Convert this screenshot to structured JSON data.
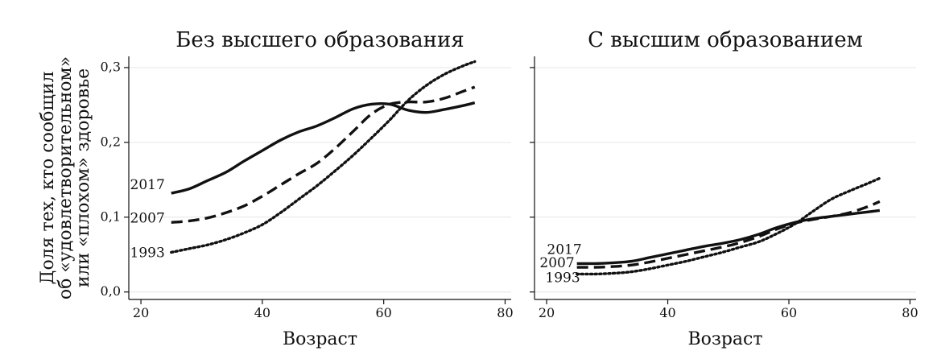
{
  "chart_data": {
    "type": "line",
    "ylabel_lines": [
      "Доля тех, кто сообщил",
      "об «удовлетворительном»",
      "или «плохом» здоровье"
    ],
    "xlabel": "Возраст",
    "xlim": [
      18,
      81
    ],
    "ylim": [
      -0.01,
      0.315
    ],
    "xticks": [
      20,
      40,
      60,
      80
    ],
    "yticks": [
      0.0,
      0.1,
      0.2,
      0.3
    ],
    "ytick_labels": [
      "0,0",
      "0,1",
      "0,2",
      "0,3"
    ],
    "grid": "horizontal",
    "line_color": "#111111",
    "panels": [
      {
        "title": "Без высшего образования",
        "series": [
          {
            "name": "2017",
            "style": "solid",
            "x": [
              25,
              28,
              31,
              34,
              37,
              40,
              43,
              46,
              49,
              52,
              55,
              58,
              61,
              64,
              67,
              70,
              73,
              75
            ],
            "y": [
              0.132,
              0.138,
              0.149,
              0.16,
              0.175,
              0.189,
              0.203,
              0.214,
              0.222,
              0.233,
              0.245,
              0.251,
              0.251,
              0.243,
              0.24,
              0.244,
              0.249,
              0.253
            ]
          },
          {
            "name": "2007",
            "style": "dashed",
            "x": [
              25,
              28,
              31,
              34,
              37,
              40,
              43,
              46,
              49,
              52,
              55,
              58,
              61,
              64,
              67,
              70,
              73,
              75
            ],
            "y": [
              0.093,
              0.095,
              0.099,
              0.106,
              0.115,
              0.128,
              0.143,
              0.158,
              0.172,
              0.192,
              0.215,
              0.238,
              0.251,
              0.254,
              0.254,
              0.259,
              0.268,
              0.274
            ]
          },
          {
            "name": "1993",
            "style": "dotted",
            "x": [
              25,
              28,
              31,
              34,
              37,
              40,
              43,
              46,
              49,
              52,
              55,
              58,
              61,
              64,
              67,
              70,
              73,
              75
            ],
            "y": [
              0.053,
              0.058,
              0.063,
              0.07,
              0.079,
              0.09,
              0.106,
              0.124,
              0.142,
              0.162,
              0.183,
              0.206,
              0.23,
              0.256,
              0.276,
              0.291,
              0.302,
              0.308
            ]
          }
        ]
      },
      {
        "title": "С высшим образованием",
        "series": [
          {
            "name": "2017",
            "style": "solid",
            "x": [
              25,
              28,
              31,
              34,
              37,
              40,
              43,
              46,
              49,
              52,
              55,
              58,
              61,
              64,
              67,
              70,
              73,
              75
            ],
            "y": [
              0.038,
              0.038,
              0.039,
              0.041,
              0.046,
              0.051,
              0.056,
              0.061,
              0.065,
              0.07,
              0.077,
              0.086,
              0.093,
              0.098,
              0.101,
              0.104,
              0.107,
              0.109
            ]
          },
          {
            "name": "2007",
            "style": "dashed",
            "x": [
              25,
              28,
              31,
              34,
              37,
              40,
              43,
              46,
              49,
              52,
              55,
              58,
              61,
              64,
              67,
              70,
              73,
              75
            ],
            "y": [
              0.033,
              0.033,
              0.034,
              0.036,
              0.04,
              0.045,
              0.05,
              0.055,
              0.06,
              0.066,
              0.074,
              0.084,
              0.092,
              0.097,
              0.101,
              0.106,
              0.114,
              0.121
            ]
          },
          {
            "name": "1993",
            "style": "dotted",
            "x": [
              25,
              28,
              31,
              34,
              37,
              40,
              43,
              46,
              49,
              52,
              55,
              58,
              61,
              64,
              67,
              70,
              73,
              75
            ],
            "y": [
              0.024,
              0.024,
              0.025,
              0.027,
              0.031,
              0.036,
              0.041,
              0.047,
              0.053,
              0.06,
              0.067,
              0.078,
              0.091,
              0.108,
              0.124,
              0.135,
              0.145,
              0.152
            ]
          }
        ]
      }
    ]
  }
}
